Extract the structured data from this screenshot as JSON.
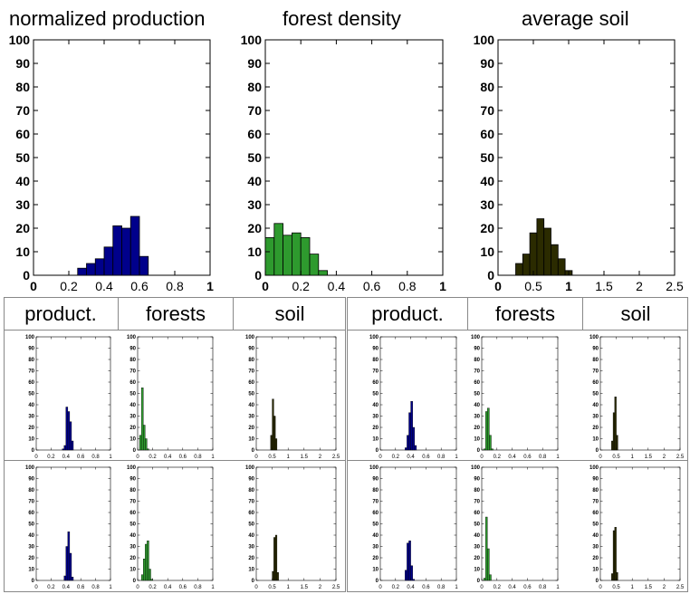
{
  "top_titles": [
    "normalized production",
    "forest density",
    "average soil"
  ],
  "group_headers": {
    "left": [
      "product.",
      "forests",
      "soil"
    ],
    "right": [
      "product.",
      "forests",
      "soil"
    ]
  },
  "colors": {
    "production": "#00008b",
    "forest": "#2e9a2e",
    "soil": "#2b2b00"
  },
  "chart_data": [
    {
      "type": "bar",
      "title": "normalized production",
      "xlim": [
        0,
        1
      ],
      "ylim": [
        0,
        100
      ],
      "xticks": [
        0,
        0.2,
        0.4,
        0.6,
        0.8,
        1
      ],
      "yticks": [
        0,
        10,
        20,
        30,
        40,
        50,
        60,
        70,
        80,
        90,
        100
      ],
      "bin_start": 0.25,
      "bin_width": 0.05,
      "values": [
        3,
        5,
        7,
        12,
        21,
        20,
        25,
        8
      ],
      "color": "#00008b"
    },
    {
      "type": "bar",
      "title": "forest density",
      "xlim": [
        0,
        1
      ],
      "ylim": [
        0,
        100
      ],
      "xticks": [
        0,
        0.2,
        0.4,
        0.6,
        0.8,
        1
      ],
      "yticks": [
        0,
        10,
        20,
        30,
        40,
        50,
        60,
        70,
        80,
        90,
        100
      ],
      "bin_start": 0.0,
      "bin_width": 0.05,
      "values": [
        16,
        22,
        17,
        18,
        16,
        9,
        2
      ],
      "color": "#2e9a2e"
    },
    {
      "type": "bar",
      "title": "average soil",
      "xlim": [
        0,
        2.5
      ],
      "ylim": [
        0,
        100
      ],
      "xticks": [
        0,
        0.5,
        1,
        1.5,
        2,
        2.5
      ],
      "yticks": [
        0,
        10,
        20,
        30,
        40,
        50,
        60,
        70,
        80,
        90,
        100
      ],
      "bin_start": 0.25,
      "bin_width": 0.1,
      "values": [
        5,
        9,
        18,
        24,
        20,
        13,
        7,
        2
      ],
      "color": "#2b2b00"
    },
    {
      "type": "bar",
      "xlim": [
        0,
        1
      ],
      "ylim": [
        0,
        100
      ],
      "xticks": [
        0,
        0.2,
        0.4,
        0.6,
        0.8,
        1
      ],
      "yticks": [
        0,
        10,
        20,
        30,
        40,
        50,
        60,
        70,
        80,
        90,
        100
      ],
      "bin_start": 0.35,
      "bin_width": 0.025,
      "values": [
        1,
        4,
        38,
        34,
        25,
        8
      ],
      "color": "#00008b"
    },
    {
      "type": "bar",
      "xlim": [
        0,
        1
      ],
      "ylim": [
        0,
        100
      ],
      "xticks": [
        0,
        0.2,
        0.4,
        0.6,
        0.8,
        1
      ],
      "yticks": [
        0,
        10,
        20,
        30,
        40,
        50,
        60,
        70,
        80,
        90,
        100
      ],
      "bin_start": 0.025,
      "bin_width": 0.025,
      "values": [
        13,
        55,
        22,
        10,
        1
      ],
      "color": "#2e9a2e"
    },
    {
      "type": "bar",
      "xlim": [
        0,
        2.5
      ],
      "ylim": [
        0,
        100
      ],
      "xticks": [
        0,
        0.5,
        1,
        1.5,
        2,
        2.5
      ],
      "yticks": [
        0,
        10,
        20,
        30,
        40,
        50,
        60,
        70,
        80,
        90,
        100
      ],
      "bin_start": 0.45,
      "bin_width": 0.05,
      "values": [
        13,
        45,
        30,
        10
      ],
      "color": "#2b2b00"
    },
    {
      "type": "bar",
      "xlim": [
        0,
        1
      ],
      "ylim": [
        0,
        100
      ],
      "xticks": [
        0,
        0.2,
        0.4,
        0.6,
        0.8,
        1
      ],
      "yticks": [
        0,
        10,
        20,
        30,
        40,
        50,
        60,
        70,
        80,
        90,
        100
      ],
      "bin_start": 0.325,
      "bin_width": 0.025,
      "values": [
        2,
        13,
        33,
        43,
        20,
        4
      ],
      "color": "#00008b"
    },
    {
      "type": "bar",
      "xlim": [
        0,
        1
      ],
      "ylim": [
        0,
        100
      ],
      "xticks": [
        0,
        0.2,
        0.4,
        0.6,
        0.8,
        1
      ],
      "yticks": [
        0,
        10,
        20,
        30,
        40,
        50,
        60,
        70,
        80,
        90,
        100
      ],
      "bin_start": 0.025,
      "bin_width": 0.025,
      "values": [
        1,
        34,
        37,
        13,
        1
      ],
      "color": "#2e9a2e"
    },
    {
      "type": "bar",
      "xlim": [
        0,
        2.5
      ],
      "ylim": [
        0,
        100
      ],
      "xticks": [
        0,
        0.5,
        1,
        1.5,
        2,
        2.5
      ],
      "yticks": [
        0,
        10,
        20,
        30,
        40,
        50,
        60,
        70,
        80,
        90,
        100
      ],
      "bin_start": 0.35,
      "bin_width": 0.05,
      "values": [
        8,
        33,
        47,
        13
      ],
      "color": "#2b2b00"
    },
    {
      "type": "bar",
      "xlim": [
        0,
        1
      ],
      "ylim": [
        0,
        100
      ],
      "xticks": [
        0,
        0.2,
        0.4,
        0.6,
        0.8,
        1
      ],
      "yticks": [
        0,
        10,
        20,
        30,
        40,
        50,
        60,
        70,
        80,
        90,
        100
      ],
      "bin_start": 0.375,
      "bin_width": 0.025,
      "values": [
        4,
        30,
        43,
        24,
        3
      ],
      "color": "#00008b"
    },
    {
      "type": "bar",
      "xlim": [
        0,
        1
      ],
      "ylim": [
        0,
        100
      ],
      "xticks": [
        0,
        0.2,
        0.4,
        0.6,
        0.8,
        1
      ],
      "yticks": [
        0,
        10,
        20,
        30,
        40,
        50,
        60,
        70,
        80,
        90,
        100
      ],
      "bin_start": 0.05,
      "bin_width": 0.025,
      "values": [
        5,
        19,
        32,
        35,
        10,
        1
      ],
      "color": "#2e9a2e"
    },
    {
      "type": "bar",
      "xlim": [
        0,
        2.5
      ],
      "ylim": [
        0,
        100
      ],
      "xticks": [
        0,
        0.5,
        1,
        1.5,
        2,
        2.5
      ],
      "yticks": [
        0,
        10,
        20,
        30,
        40,
        50,
        60,
        70,
        80,
        90,
        100
      ],
      "bin_start": 0.5,
      "bin_width": 0.05,
      "values": [
        8,
        38,
        40,
        7
      ],
      "color": "#2b2b00"
    },
    {
      "type": "bar",
      "xlim": [
        0,
        1
      ],
      "ylim": [
        0,
        100
      ],
      "xticks": [
        0,
        0.2,
        0.4,
        0.6,
        0.8,
        1
      ],
      "yticks": [
        0,
        10,
        20,
        30,
        40,
        50,
        60,
        70,
        80,
        90,
        100
      ],
      "bin_start": 0.325,
      "bin_width": 0.025,
      "values": [
        9,
        33,
        35,
        13,
        1
      ],
      "color": "#00008b"
    },
    {
      "type": "bar",
      "xlim": [
        0,
        1
      ],
      "ylim": [
        0,
        100
      ],
      "xticks": [
        0,
        0.2,
        0.4,
        0.6,
        0.8,
        1
      ],
      "yticks": [
        0,
        10,
        20,
        30,
        40,
        50,
        60,
        70,
        80,
        90,
        100
      ],
      "bin_start": 0.025,
      "bin_width": 0.025,
      "values": [
        2,
        56,
        28,
        5
      ],
      "color": "#2e9a2e"
    },
    {
      "type": "bar",
      "xlim": [
        0,
        2.5
      ],
      "ylim": [
        0,
        100
      ],
      "xticks": [
        0,
        0.5,
        1,
        1.5,
        2,
        2.5
      ],
      "yticks": [
        0,
        10,
        20,
        30,
        40,
        50,
        60,
        70,
        80,
        90,
        100
      ],
      "bin_start": 0.35,
      "bin_width": 0.05,
      "values": [
        6,
        44,
        47,
        7
      ],
      "color": "#2b2b00"
    }
  ]
}
